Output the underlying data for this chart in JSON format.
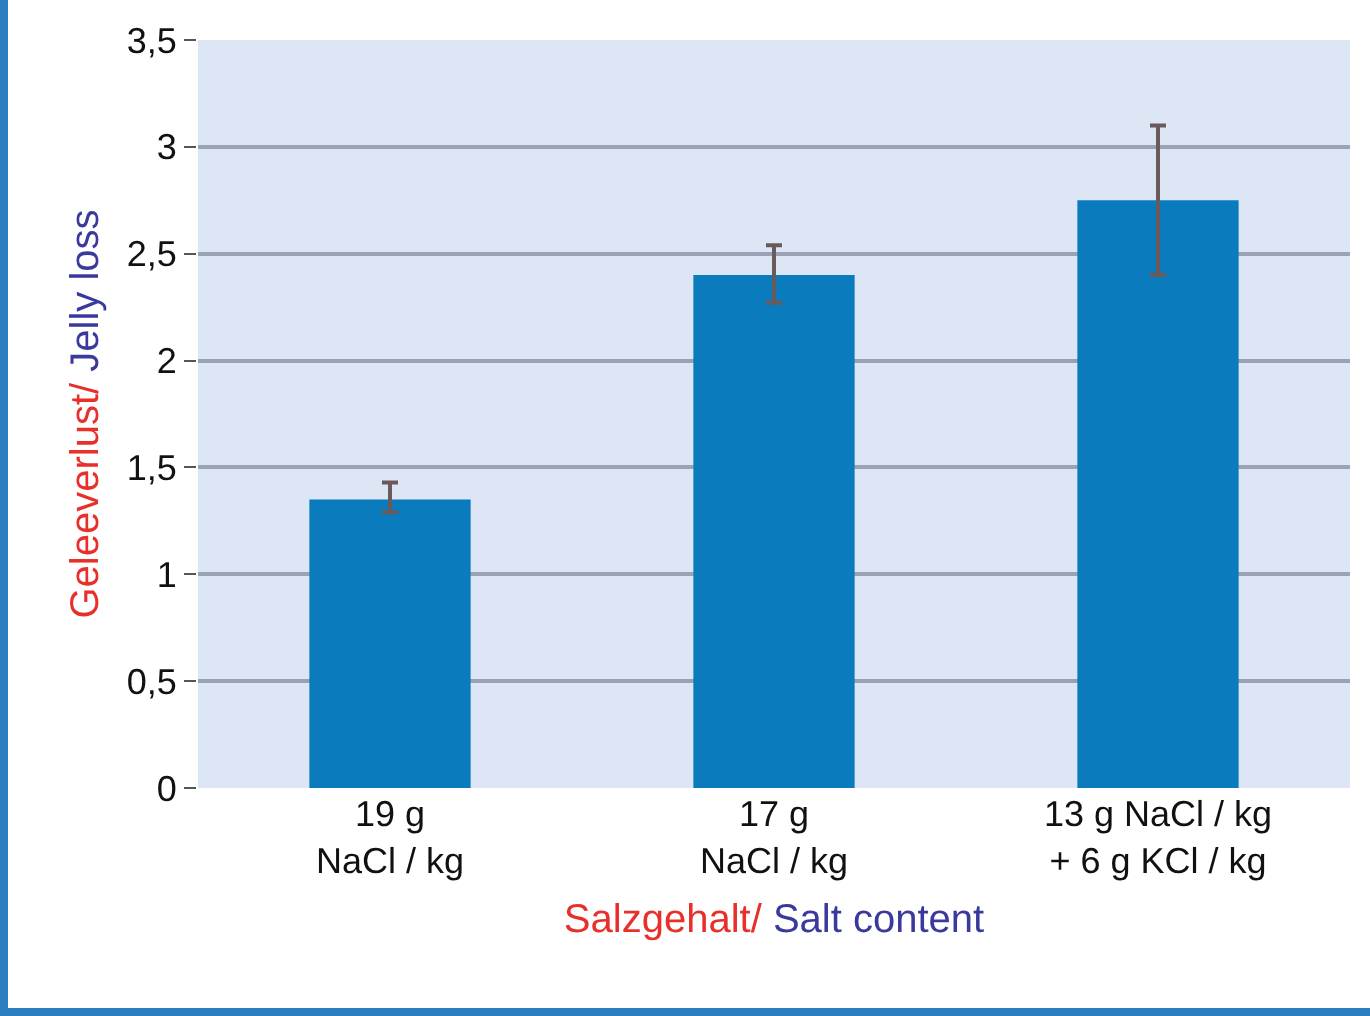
{
  "chart_data": {
    "type": "bar",
    "xlabel": "Salzgehalt/ Salt content",
    "ylabel": "Geleeverlust/ Jelly loss",
    "categories": [
      "19 g\nNaCl / kg",
      "17 g\nNaCl / kg",
      "13 g NaCl / kg\n+ 6 g KCl / kg"
    ],
    "values": [
      1.35,
      2.4,
      2.75
    ],
    "errors": [
      [
        1.29,
        1.43
      ],
      [
        2.27,
        2.54
      ],
      [
        2.4,
        3.1
      ]
    ],
    "color": "#0a7bbd",
    "ylim": [
      0,
      3.5
    ],
    "yticks": [
      0,
      {
        "value": 0.5,
        "label": "0,5"
      },
      1,
      {
        "value": 1.5,
        "label": "1,5"
      },
      2,
      {
        "value": 2.5,
        "label": "2,5"
      },
      3,
      {
        "value": 3.5,
        "label": "3,5"
      }
    ],
    "grid": "y",
    "legend": false
  }
}
